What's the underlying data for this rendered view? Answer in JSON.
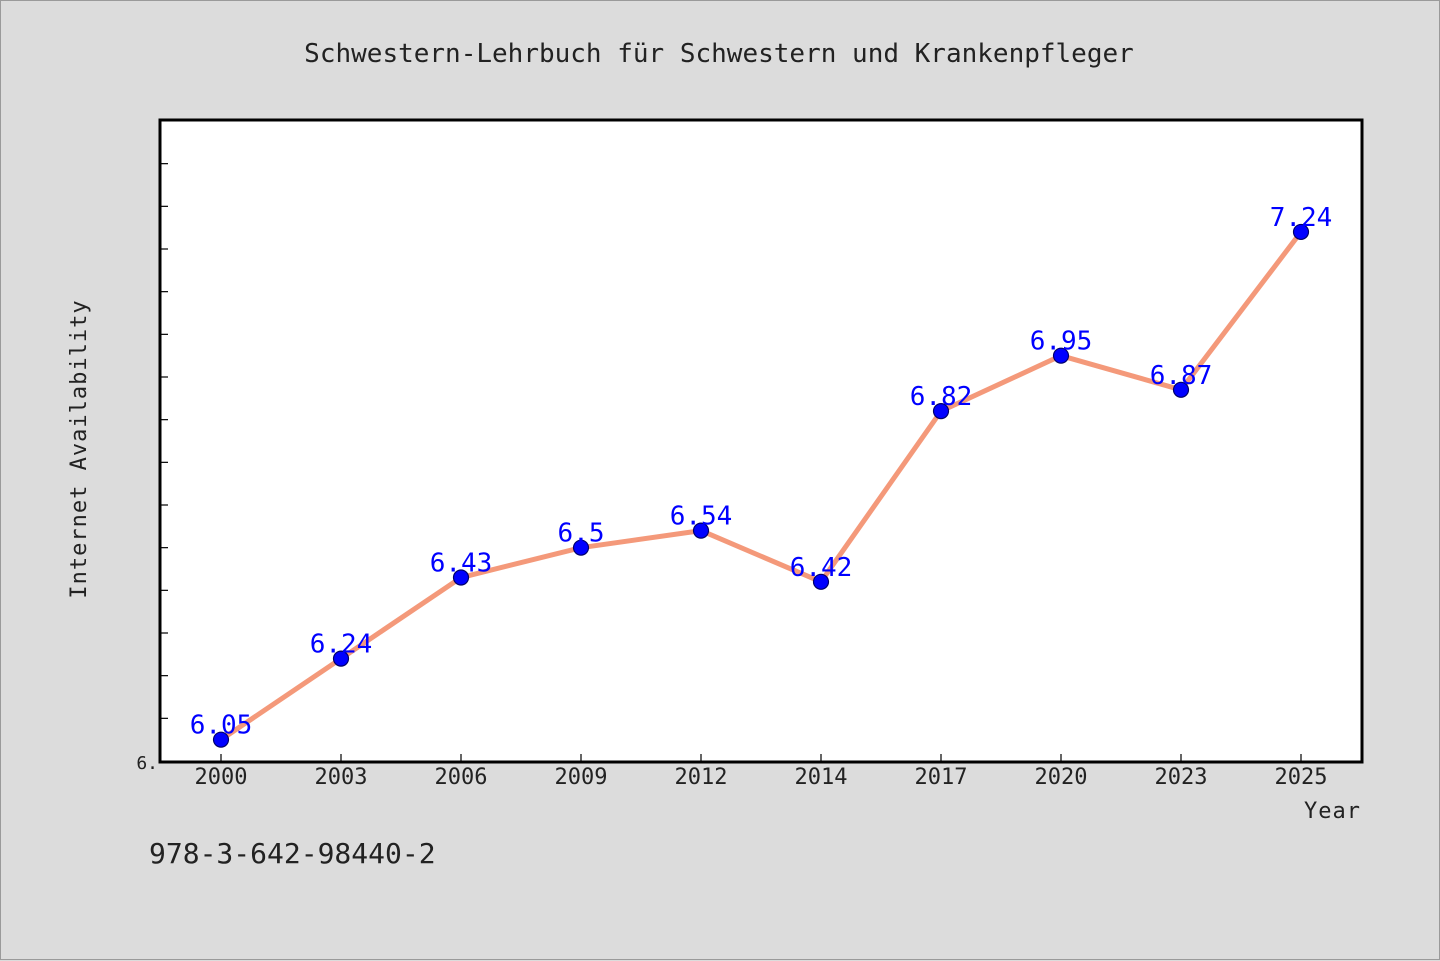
{
  "chart_data": {
    "type": "line",
    "title": "Schwestern-Lehrbuch für Schwestern und Krankenpfleger",
    "xlabel": "Year",
    "ylabel": "Internet Availability",
    "categories": [
      "2000",
      "2003",
      "2006",
      "2009",
      "2012",
      "2014",
      "2017",
      "2020",
      "2023",
      "2025"
    ],
    "series": [
      {
        "values": [
          6.05,
          6.24,
          6.43,
          6.5,
          6.54,
          6.42,
          6.82,
          6.95,
          6.87,
          7.24
        ],
        "data_labels": [
          "6.05",
          "6.24",
          "6.43",
          "6.5",
          "6.54",
          "6.42",
          "6.82",
          "6.95",
          "6.87",
          "7.24"
        ],
        "line_color": "#f4997a",
        "marker_color": "#0000ff"
      }
    ],
    "y_tick_labels": [
      {
        "value": 6.0,
        "label": "6."
      }
    ],
    "ylim": [
      6.0,
      7.5
    ],
    "grid": false,
    "legend": "none"
  },
  "footer": {
    "text": "978-3-642-98440-2"
  },
  "colors": {
    "background": "#dcdcdc",
    "plot_background": "#ffffff",
    "data_label": "#0000ff"
  }
}
